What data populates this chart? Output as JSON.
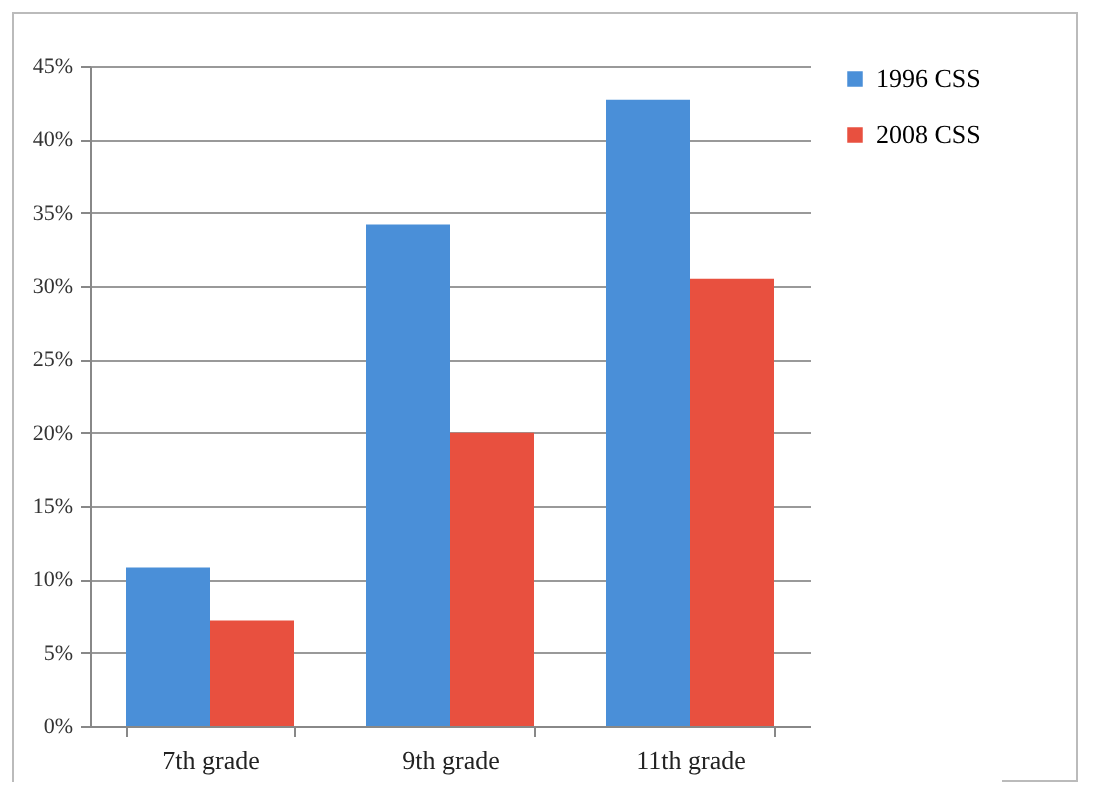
{
  "chart_data": {
    "type": "bar",
    "categories": [
      "7th grade",
      "9th grade",
      "11th grade"
    ],
    "series": [
      {
        "name": "1996 CSS",
        "color": "#4a8fd8",
        "values": [
          10.8,
          34.2,
          42.7
        ]
      },
      {
        "name": "2008 CSS",
        "color": "#e8503f",
        "values": [
          7.2,
          20.0,
          30.5
        ]
      }
    ],
    "ylim": [
      0,
      45
    ],
    "yticks": [
      {
        "value": 0,
        "label": "0%"
      },
      {
        "value": 5,
        "label": "5%"
      },
      {
        "value": 10,
        "label": "10%"
      },
      {
        "value": 15,
        "label": "15%"
      },
      {
        "value": 20,
        "label": "20%"
      },
      {
        "value": 25,
        "label": "25%"
      },
      {
        "value": 30,
        "label": "30%"
      },
      {
        "value": 35,
        "label": "35%"
      },
      {
        "value": 40,
        "label": "40%"
      },
      {
        "value": 45,
        "label": "45%"
      }
    ],
    "grid": "y",
    "legend": "right"
  }
}
